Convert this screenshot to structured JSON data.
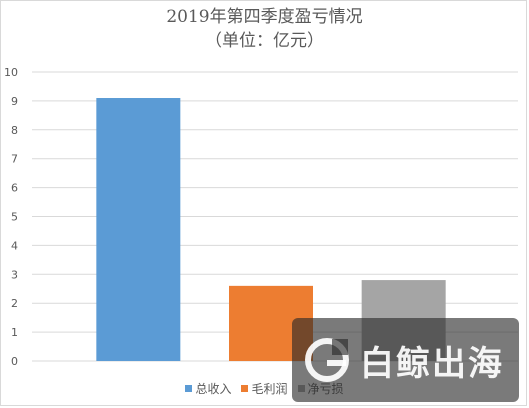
{
  "chart_data": {
    "type": "bar",
    "title": "2019年第四季度盈亏情况",
    "subtitle": "（单位：亿元）",
    "categories": [
      "总收入",
      "毛利润",
      "净亏损"
    ],
    "values": [
      9.1,
      2.6,
      2.8
    ],
    "colors": [
      "#5b9bd5",
      "#ed7d31",
      "#a5a5a5"
    ],
    "ylim": [
      0,
      10
    ],
    "yticks": [
      "0",
      "1",
      "2",
      "3",
      "4",
      "5",
      "6",
      "7",
      "8",
      "9",
      "10"
    ],
    "grid": true,
    "legend_position": "bottom"
  },
  "watermark": {
    "text": "白鲸出海"
  }
}
